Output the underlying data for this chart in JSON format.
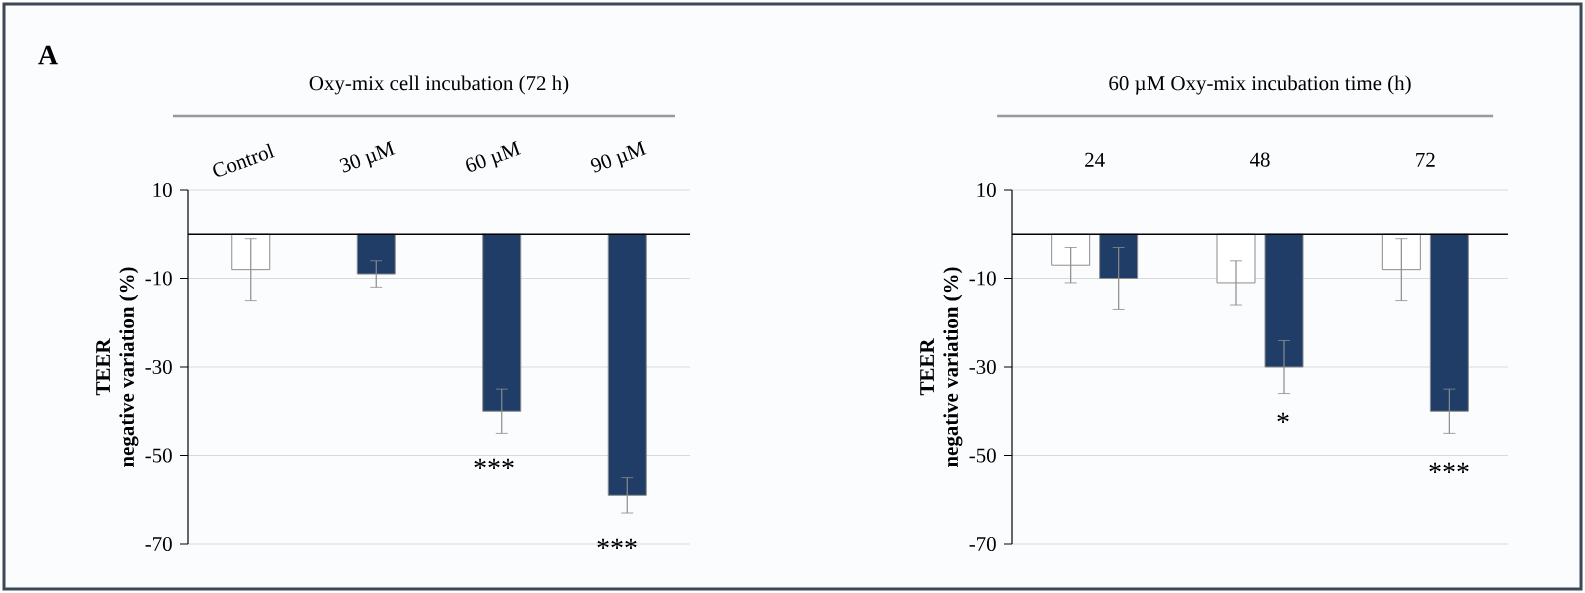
{
  "chart_data": [
    {
      "type": "bar",
      "title": "Oxy-mix cell incubation (72 h)",
      "ylabel": "TEER negative variation (%)",
      "categories": [
        "Control",
        "30 µM",
        "60 µM",
        "90 µM"
      ],
      "values": [
        -8,
        -9,
        -40,
        -59
      ],
      "colors": [
        "#ffffff",
        "#1f3d66",
        "#1f3d66",
        "#1f3d66"
      ],
      "errors": [
        7,
        3,
        5,
        4
      ],
      "ylim": [
        -70,
        10
      ],
      "yticks": [
        -70,
        -50,
        -30,
        -10,
        10
      ],
      "grid": "y",
      "annotations": [
        "A",
        "***",
        "***"
      ]
    },
    {
      "type": "bar",
      "title": "60 µM Oxy-mix incubation time (h)",
      "ylabel": "TEER negative variation (%)",
      "categories": [
        "24",
        "48",
        "72"
      ],
      "series": [
        {
          "color": "#ffffff",
          "values": [
            -7,
            -11,
            -8
          ],
          "errors": [
            4,
            5,
            7
          ]
        },
        {
          "color": "#1f3d66",
          "values": [
            -10,
            -30,
            -40
          ],
          "errors": [
            7,
            6,
            5
          ]
        }
      ],
      "ylim": [
        -70,
        10
      ],
      "yticks": [
        -70,
        -50,
        -30,
        -10,
        10
      ],
      "grid": "y",
      "annotations": [
        "*",
        "***"
      ]
    }
  ]
}
